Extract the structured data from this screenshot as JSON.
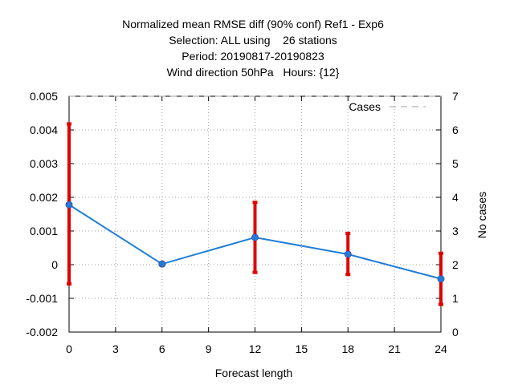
{
  "chart_data": {
    "type": "line",
    "title_lines": [
      "Normalized mean RMSE diff (90% conf) Ref1 - Exp6",
      "Selection: ALL using    26 stations",
      "Period: 20190817-20190823",
      "Wind direction 50hPa   Hours: {12}"
    ],
    "xlabel": "Forecast length",
    "ylabel_right": "No cases",
    "xlim": [
      0,
      24
    ],
    "ylim": [
      -0.002,
      0.005
    ],
    "y2lim": [
      0,
      7
    ],
    "x_ticks": [
      0,
      3,
      6,
      9,
      12,
      15,
      18,
      21,
      24
    ],
    "x_tick_labels": [
      "0",
      "3",
      "6",
      "9",
      "12",
      "15",
      "18",
      "21",
      "24"
    ],
    "y_ticks": [
      -0.002,
      -0.001,
      0,
      0.001,
      0.002,
      0.003,
      0.004,
      0.005
    ],
    "y_tick_labels": [
      "-0.002",
      "-0.001",
      "0",
      "0.001",
      "0.002",
      "0.003",
      "0.004",
      "0.005"
    ],
    "y2_ticks": [
      0,
      1,
      2,
      3,
      4,
      5,
      6,
      7
    ],
    "y2_tick_labels": [
      "0",
      "1",
      "2",
      "3",
      "4",
      "5",
      "6",
      "7"
    ],
    "grid": true,
    "legend": {
      "position": "top-right",
      "entries": [
        {
          "label": "Cases",
          "style": "dashed",
          "color": "#a0a0a0"
        }
      ]
    },
    "series": [
      {
        "color": "#1f7ed8",
        "x": [
          0,
          6,
          12,
          18,
          24
        ],
        "y": [
          0.00178,
          2e-05,
          0.00081,
          0.00031,
          -0.00042
        ],
        "err_low": [
          -0.00057,
          -2e-05,
          -0.00023,
          -0.00029,
          -0.00118
        ],
        "err_high": [
          0.00418,
          6e-05,
          0.00185,
          0.00093,
          0.00034
        ],
        "err_color": "#e00000"
      }
    ],
    "cases": {
      "x": [
        0,
        6,
        12,
        18,
        24
      ],
      "y": [
        7,
        7,
        7,
        7,
        7
      ]
    }
  }
}
